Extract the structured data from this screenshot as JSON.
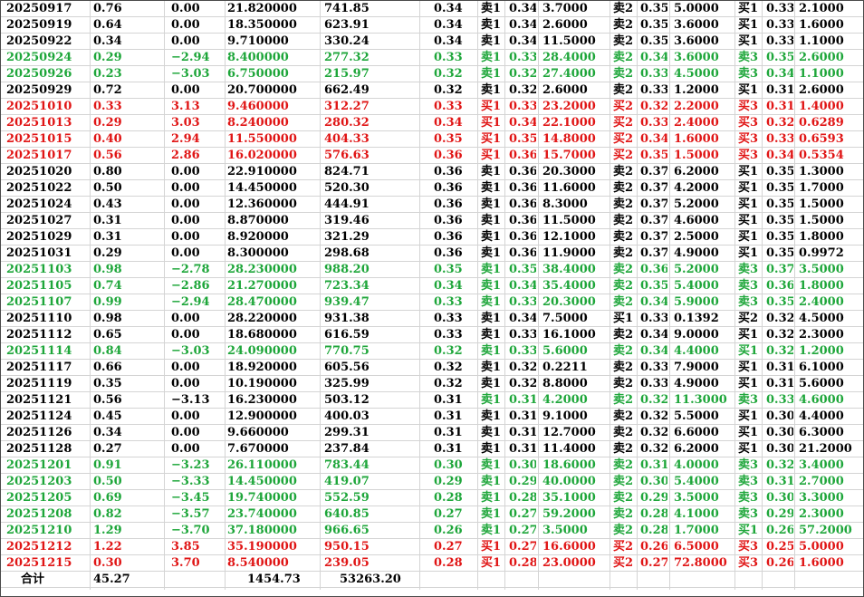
{
  "table": {
    "rows": [
      {
        "color": "black",
        "cells": [
          "20250917",
          "0.76",
          "0.00",
          "21.820000",
          "741.85",
          "0.34",
          "卖1",
          "0.34",
          "3.7000",
          "卖2",
          "0.35",
          "5.0000",
          "买1",
          "0.33",
          "2.1000"
        ]
      },
      {
        "color": "black",
        "cells": [
          "20250919",
          "0.64",
          "0.00",
          "18.350000",
          "623.91",
          "0.34",
          "卖1",
          "0.34",
          "2.6000",
          "卖2",
          "0.35",
          "3.6000",
          "买1",
          "0.33",
          "1.6000"
        ]
      },
      {
        "color": "black",
        "cells": [
          "20250922",
          "0.34",
          "0.00",
          "9.710000",
          "330.24",
          "0.34",
          "卖1",
          "0.34",
          "11.5000",
          "卖2",
          "0.35",
          "3.6000",
          "买1",
          "0.33",
          "1.1000"
        ]
      },
      {
        "color": "green",
        "cells": [
          "20250924",
          "0.29",
          "−2.94",
          "8.400000",
          "277.32",
          "0.33",
          "卖1",
          "0.33",
          "28.4000",
          "卖2",
          "0.34",
          "3.6000",
          "卖3",
          "0.35",
          "2.6000"
        ]
      },
      {
        "color": "green",
        "cells": [
          "20250926",
          "0.23",
          "−3.03",
          "6.750000",
          "215.97",
          "0.32",
          "卖1",
          "0.32",
          "27.4000",
          "卖2",
          "0.33",
          "4.5000",
          "卖3",
          "0.34",
          "1.1000"
        ]
      },
      {
        "color": "black",
        "cells": [
          "20250929",
          "0.72",
          "0.00",
          "20.700000",
          "662.49",
          "0.32",
          "卖1",
          "0.32",
          "2.6000",
          "卖2",
          "0.33",
          "1.2000",
          "买1",
          "0.31",
          "2.6000"
        ]
      },
      {
        "color": "red",
        "cells": [
          "20251010",
          "0.33",
          "3.13",
          "9.460000",
          "312.27",
          "0.33",
          "买1",
          "0.33",
          "23.2000",
          "买2",
          "0.32",
          "2.2000",
          "买3",
          "0.31",
          "1.4000"
        ]
      },
      {
        "color": "red",
        "cells": [
          "20251013",
          "0.29",
          "3.03",
          "8.240000",
          "280.32",
          "0.34",
          "买1",
          "0.34",
          "22.1000",
          "买2",
          "0.33",
          "2.4000",
          "买3",
          "0.32",
          "0.6289"
        ]
      },
      {
        "color": "red",
        "cells": [
          "20251015",
          "0.40",
          "2.94",
          "11.550000",
          "404.33",
          "0.35",
          "买1",
          "0.35",
          "14.8000",
          "买2",
          "0.34",
          "1.6000",
          "买3",
          "0.33",
          "0.6593"
        ]
      },
      {
        "color": "red",
        "cells": [
          "20251017",
          "0.56",
          "2.86",
          "16.020000",
          "576.63",
          "0.36",
          "买1",
          "0.36",
          "15.7000",
          "买2",
          "0.35",
          "1.5000",
          "买3",
          "0.34",
          "0.5354"
        ]
      },
      {
        "color": "black",
        "cells": [
          "20251020",
          "0.80",
          "0.00",
          "22.910000",
          "824.71",
          "0.36",
          "卖1",
          "0.36",
          "20.3000",
          "卖2",
          "0.37",
          "6.2000",
          "买1",
          "0.35",
          "1.3000"
        ]
      },
      {
        "color": "black",
        "cells": [
          "20251022",
          "0.50",
          "0.00",
          "14.450000",
          "520.30",
          "0.36",
          "卖1",
          "0.36",
          "11.6000",
          "卖2",
          "0.37",
          "4.2000",
          "买1",
          "0.35",
          "1.7000"
        ]
      },
      {
        "color": "black",
        "cells": [
          "20251024",
          "0.43",
          "0.00",
          "12.360000",
          "444.91",
          "0.36",
          "卖1",
          "0.36",
          "8.3000",
          "卖2",
          "0.37",
          "5.2000",
          "买1",
          "0.35",
          "1.5000"
        ]
      },
      {
        "color": "black",
        "cells": [
          "20251027",
          "0.31",
          "0.00",
          "8.870000",
          "319.46",
          "0.36",
          "卖1",
          "0.36",
          "11.5000",
          "卖2",
          "0.37",
          "4.6000",
          "买1",
          "0.35",
          "1.5000"
        ]
      },
      {
        "color": "black",
        "cells": [
          "20251029",
          "0.31",
          "0.00",
          "8.920000",
          "321.29",
          "0.36",
          "卖1",
          "0.36",
          "12.1000",
          "卖2",
          "0.37",
          "2.5000",
          "买1",
          "0.35",
          "1.8000"
        ]
      },
      {
        "color": "black",
        "cells": [
          "20251031",
          "0.29",
          "0.00",
          "8.300000",
          "298.68",
          "0.36",
          "卖1",
          "0.36",
          "11.9000",
          "卖2",
          "0.37",
          "4.9000",
          "买1",
          "0.35",
          "0.9972"
        ]
      },
      {
        "color": "green",
        "cells": [
          "20251103",
          "0.98",
          "−2.78",
          "28.230000",
          "988.20",
          "0.35",
          "卖1",
          "0.35",
          "38.4000",
          "卖2",
          "0.36",
          "5.2000",
          "卖3",
          "0.37",
          "3.5000"
        ]
      },
      {
        "color": "green",
        "cells": [
          "20251105",
          "0.74",
          "−2.86",
          "21.270000",
          "723.34",
          "0.34",
          "卖1",
          "0.34",
          "35.4000",
          "卖2",
          "0.35",
          "5.4000",
          "卖3",
          "0.36",
          "1.8000"
        ]
      },
      {
        "color": "green",
        "cells": [
          "20251107",
          "0.99",
          "−2.94",
          "28.470000",
          "939.47",
          "0.33",
          "卖1",
          "0.33",
          "20.3000",
          "卖2",
          "0.34",
          "5.9000",
          "卖3",
          "0.35",
          "2.4000"
        ]
      },
      {
        "color": "black",
        "cells": [
          "20251110",
          "0.98",
          "0.00",
          "28.220000",
          "931.38",
          "0.33",
          "卖1",
          "0.34",
          "7.5000",
          "买1",
          "0.33",
          "0.1392",
          "买2",
          "0.32",
          "4.5000"
        ]
      },
      {
        "color": "black",
        "cells": [
          "20251112",
          "0.65",
          "0.00",
          "18.680000",
          "616.59",
          "0.33",
          "卖1",
          "0.33",
          "16.1000",
          "卖2",
          "0.34",
          "9.0000",
          "买1",
          "0.32",
          "2.3000"
        ]
      },
      {
        "color": "green",
        "cells": [
          "20251114",
          "0.84",
          "−3.03",
          "24.090000",
          "770.75",
          "0.32",
          "卖1",
          "0.33",
          "5.6000",
          "卖2",
          "0.34",
          "4.4000",
          "买1",
          "0.32",
          "1.2000"
        ]
      },
      {
        "color": "black",
        "cells": [
          "20251117",
          "0.66",
          "0.00",
          "18.920000",
          "605.56",
          "0.32",
          "卖1",
          "0.32",
          "0.2211",
          "卖2",
          "0.33",
          "7.9000",
          "买1",
          "0.31",
          "6.1000"
        ]
      },
      {
        "color": "black",
        "cells": [
          "20251119",
          "0.35",
          "0.00",
          "10.190000",
          "325.99",
          "0.32",
          "卖1",
          "0.32",
          "8.8000",
          "卖2",
          "0.33",
          "4.9000",
          "买1",
          "0.31",
          "5.6000"
        ]
      },
      {
        "color": "black",
        "cells": [
          "20251121",
          "0.56",
          "−3.13",
          "16.230000",
          "503.12",
          "0.31",
          "卖1",
          "0.31",
          "4.2000",
          "卖2",
          "0.32",
          "11.3000",
          "卖3",
          "0.33",
          "4.6000"
        ],
        "mixed": true
      },
      {
        "color": "black",
        "cells": [
          "20251124",
          "0.45",
          "0.00",
          "12.900000",
          "400.03",
          "0.31",
          "卖1",
          "0.31",
          "9.1000",
          "卖2",
          "0.32",
          "5.5000",
          "买1",
          "0.30",
          "4.4000"
        ]
      },
      {
        "color": "black",
        "cells": [
          "20251126",
          "0.34",
          "0.00",
          "9.660000",
          "299.31",
          "0.31",
          "卖1",
          "0.31",
          "12.7000",
          "卖2",
          "0.32",
          "6.6000",
          "买1",
          "0.30",
          "6.3000"
        ]
      },
      {
        "color": "black",
        "cells": [
          "20251128",
          "0.27",
          "0.00",
          "7.670000",
          "237.84",
          "0.31",
          "卖1",
          "0.31",
          "11.4000",
          "卖2",
          "0.32",
          "6.2000",
          "买1",
          "0.30",
          "21.2000"
        ]
      },
      {
        "color": "green",
        "cells": [
          "20251201",
          "0.91",
          "−3.23",
          "26.110000",
          "783.44",
          "0.30",
          "卖1",
          "0.30",
          "18.6000",
          "卖2",
          "0.31",
          "4.0000",
          "卖3",
          "0.32",
          "3.4000"
        ]
      },
      {
        "color": "green",
        "cells": [
          "20251203",
          "0.50",
          "−3.33",
          "14.450000",
          "419.07",
          "0.29",
          "卖1",
          "0.29",
          "40.0000",
          "卖2",
          "0.30",
          "5.4000",
          "卖3",
          "0.31",
          "2.7000"
        ]
      },
      {
        "color": "green",
        "cells": [
          "20251205",
          "0.69",
          "−3.45",
          "19.740000",
          "552.59",
          "0.28",
          "卖1",
          "0.28",
          "35.1000",
          "卖2",
          "0.29",
          "3.5000",
          "卖3",
          "0.30",
          "3.3000"
        ]
      },
      {
        "color": "green",
        "cells": [
          "20251208",
          "0.82",
          "−3.57",
          "23.740000",
          "640.85",
          "0.27",
          "卖1",
          "0.27",
          "59.2000",
          "卖2",
          "0.28",
          "4.1000",
          "卖3",
          "0.29",
          "2.3000"
        ]
      },
      {
        "color": "green",
        "cells": [
          "20251210",
          "1.29",
          "−3.70",
          "37.180000",
          "966.65",
          "0.26",
          "卖1",
          "0.27",
          "3.5000",
          "卖2",
          "0.28",
          "1.7000",
          "买1",
          "0.26",
          "57.2000"
        ]
      },
      {
        "color": "red",
        "cells": [
          "20251212",
          "1.22",
          "3.85",
          "35.190000",
          "950.15",
          "0.27",
          "买1",
          "0.27",
          "16.6000",
          "买2",
          "0.26",
          "6.5000",
          "买3",
          "0.25",
          "5.0000"
        ]
      },
      {
        "color": "red",
        "cells": [
          "20251215",
          "0.30",
          "3.70",
          "8.540000",
          "239.05",
          "0.28",
          "买1",
          "0.28",
          "23.0000",
          "买2",
          "0.27",
          "72.8000",
          "买3",
          "0.26",
          "1.6000"
        ]
      }
    ],
    "total": {
      "label": "合计",
      "sum_turnover": "45.27",
      "sum_volume": "1454.73",
      "sum_amount": "53263.20"
    }
  },
  "colors": {
    "black": "#000000",
    "green": "#1ea63a",
    "red": "#e01515",
    "grid": "#d4d4d4"
  }
}
